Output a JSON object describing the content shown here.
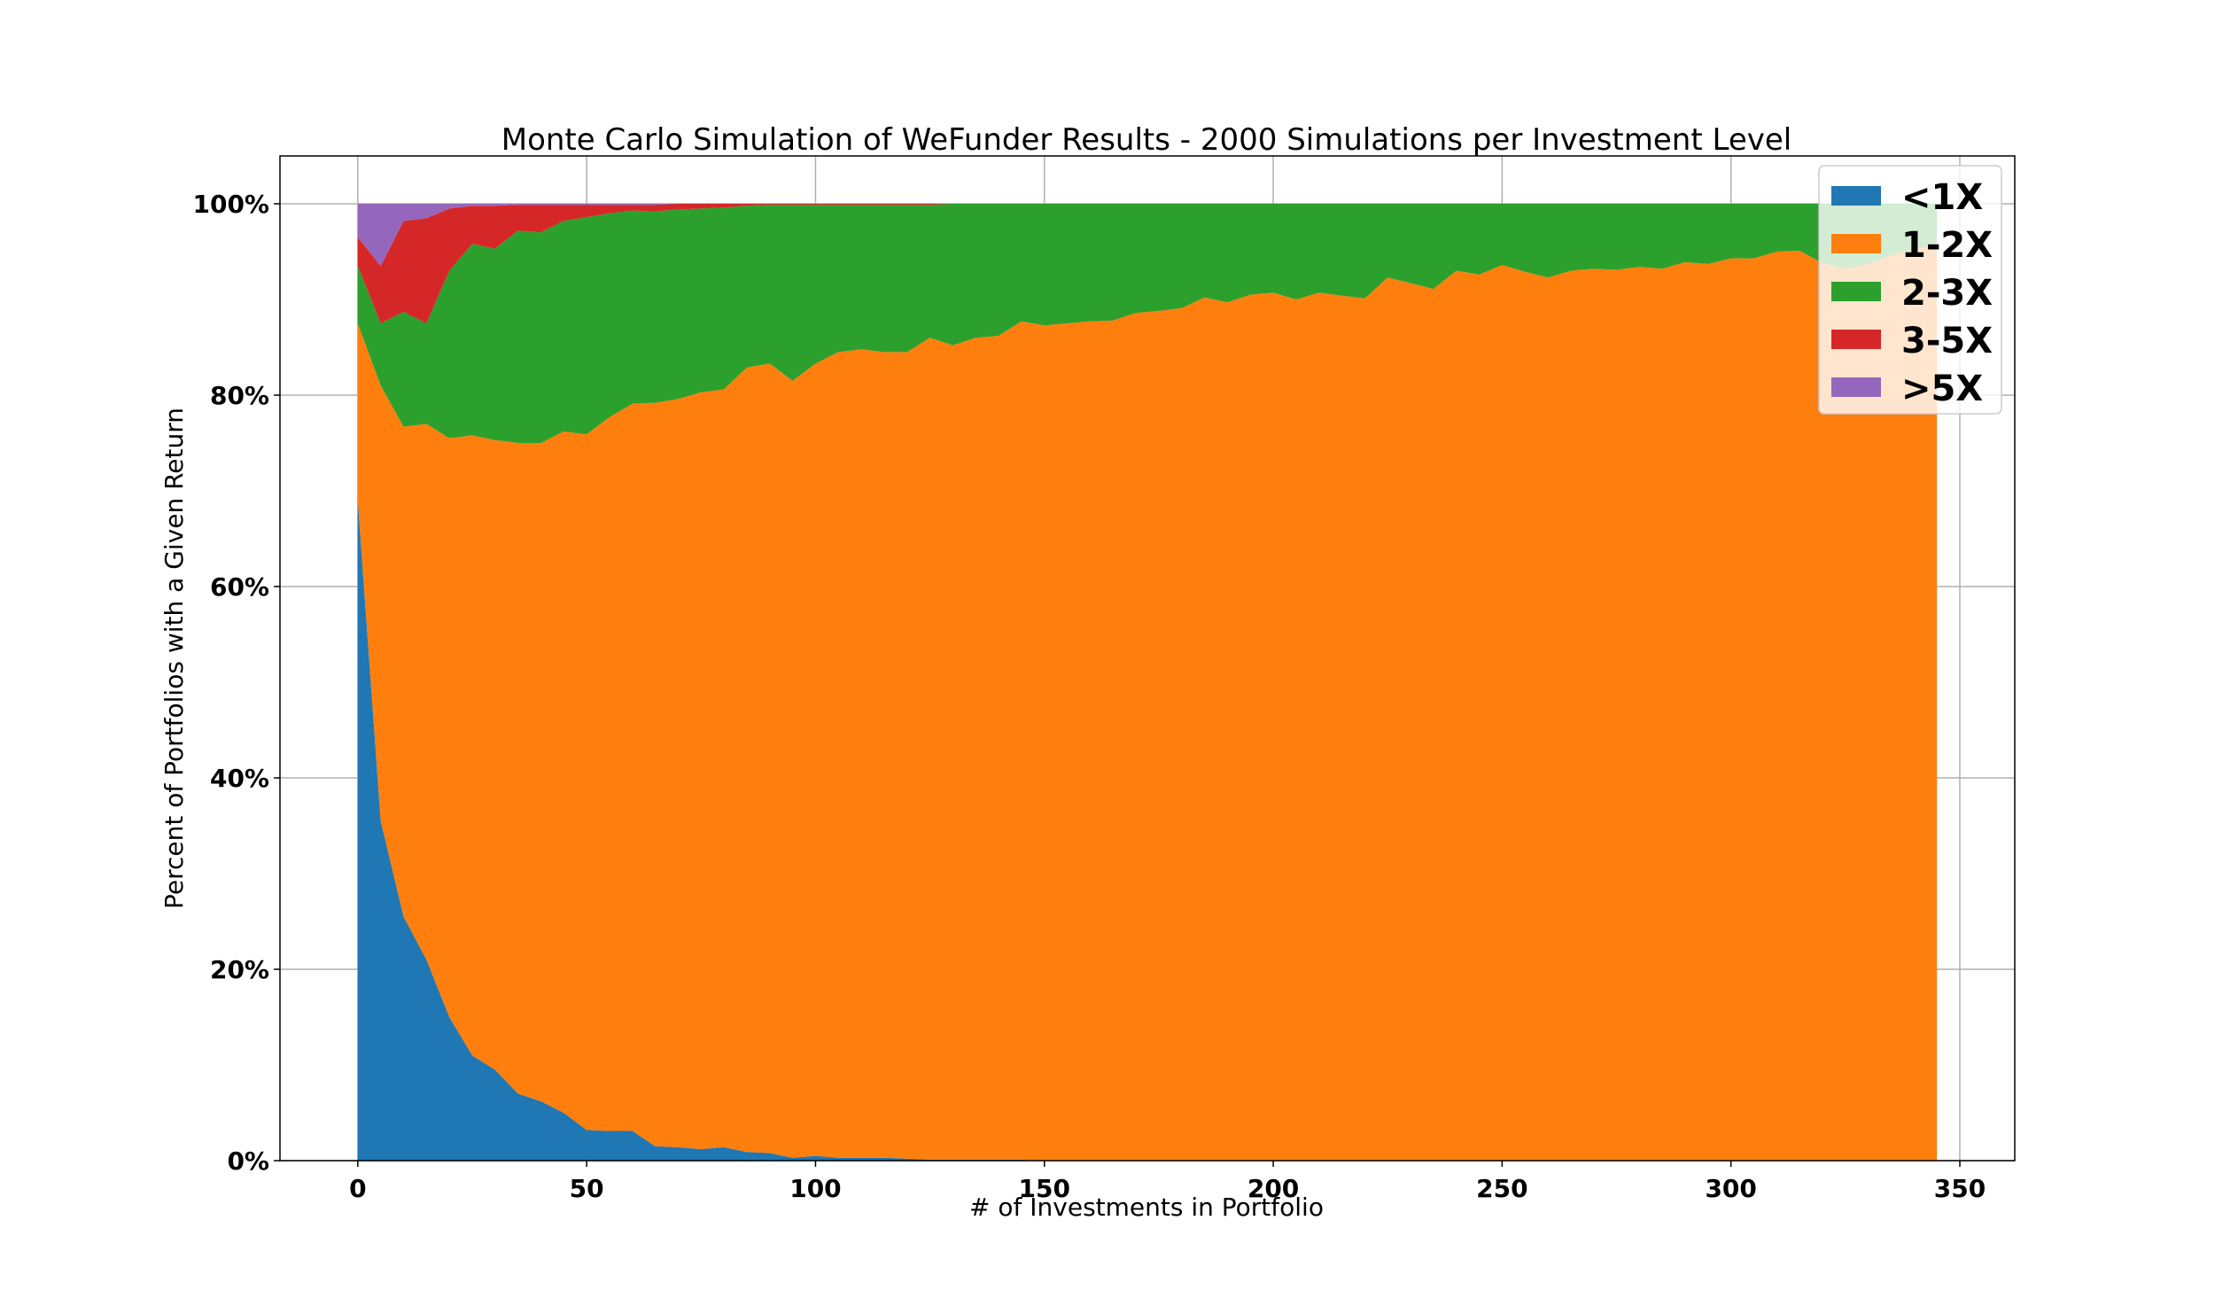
{
  "chart_data": {
    "type": "area",
    "title": "Monte Carlo Simulation of WeFunder Results - 2000 Simulations per Investment Level",
    "xlabel": "# of Investments in Portfolio",
    "ylabel": "Percent of Portfolios with a Given Return",
    "xlim": [
      -17,
      362
    ],
    "ylim": [
      0,
      1.05
    ],
    "x_ticks": [
      0,
      50,
      100,
      150,
      200,
      250,
      300,
      350
    ],
    "x_tick_labels": [
      "0",
      "50",
      "100",
      "150",
      "200",
      "250",
      "300",
      "350"
    ],
    "y_ticks": [
      0,
      0.2,
      0.4,
      0.6,
      0.8,
      1.0
    ],
    "y_tick_labels": [
      "0%",
      "20%",
      "40%",
      "60%",
      "80%",
      "100%"
    ],
    "grid": true,
    "legend_position": "top-right",
    "colors": {
      "<1X": "#1f77b4",
      "1-2X": "#ff7f0e",
      "2-3X": "#2ca02c",
      "3-5X": "#d62728",
      ">5X": "#9467bd"
    },
    "x": [
      0,
      5,
      10,
      15,
      20,
      25,
      30,
      35,
      40,
      45,
      50,
      55,
      60,
      65,
      70,
      75,
      80,
      85,
      90,
      95,
      100,
      105,
      110,
      115,
      120,
      125,
      130,
      135,
      140,
      145,
      150,
      155,
      160,
      165,
      170,
      175,
      180,
      185,
      190,
      195,
      200,
      205,
      210,
      215,
      220,
      225,
      230,
      235,
      240,
      245,
      250,
      255,
      260,
      265,
      270,
      275,
      280,
      285,
      290,
      295,
      300,
      305,
      310,
      315,
      320,
      325,
      330,
      335,
      340,
      345
    ],
    "series": [
      {
        "name": "<1X",
        "values": [
          0.69,
          0.355,
          0.255,
          0.21,
          0.15,
          0.11,
          0.095,
          0.07,
          0.062,
          0.05,
          0.032,
          0.031,
          0.031,
          0.015,
          0.014,
          0.012,
          0.014,
          0.009,
          0.008,
          0.003,
          0.005,
          0.003,
          0.003,
          0.003,
          0.002,
          0.001,
          0.001,
          0.001,
          0.001,
          0.001,
          0.0,
          0.0,
          0.0,
          0.0,
          0.0,
          0.0,
          0.0,
          0.0,
          0.0,
          0.0,
          0.0,
          0.0,
          0.0,
          0.0,
          0.0,
          0.0,
          0.0,
          0.0,
          0.0,
          0.0,
          0.0,
          0.0,
          0.0,
          0.0,
          0.0,
          0.0,
          0.0,
          0.0,
          0.0,
          0.0,
          0.0,
          0.0,
          0.0,
          0.0,
          0.0,
          0.0,
          0.0,
          0.0,
          0.0,
          0.0
        ]
      },
      {
        "name": "1-2X",
        "values": [
          0.185,
          0.455,
          0.512,
          0.56,
          0.605,
          0.648,
          0.658,
          0.68,
          0.688,
          0.712,
          0.727,
          0.746,
          0.76,
          0.777,
          0.782,
          0.791,
          0.792,
          0.82,
          0.825,
          0.812,
          0.828,
          0.842,
          0.845,
          0.842,
          0.843,
          0.859,
          0.851,
          0.859,
          0.861,
          0.876,
          0.873,
          0.875,
          0.877,
          0.878,
          0.886,
          0.888,
          0.891,
          0.902,
          0.897,
          0.905,
          0.907,
          0.9,
          0.907,
          0.904,
          0.901,
          0.923,
          0.917,
          0.911,
          0.93,
          0.926,
          0.936,
          0.929,
          0.923,
          0.93,
          0.932,
          0.931,
          0.934,
          0.932,
          0.939,
          0.937,
          0.943,
          0.943,
          0.95,
          0.951,
          0.938,
          0.932,
          0.937,
          0.946,
          0.952,
          0.958
        ]
      },
      {
        "name": "2-3X",
        "values": [
          0.06,
          0.065,
          0.12,
          0.105,
          0.175,
          0.2,
          0.2,
          0.222,
          0.22,
          0.22,
          0.227,
          0.213,
          0.202,
          0.2,
          0.198,
          0.192,
          0.19,
          0.169,
          0.166,
          0.184,
          0.166,
          0.154,
          0.151,
          0.154,
          0.154,
          0.139,
          0.148,
          0.14,
          0.138,
          0.123,
          0.127,
          0.125,
          0.123,
          0.122,
          0.114,
          0.112,
          0.109,
          0.098,
          0.103,
          0.095,
          0.093,
          0.1,
          0.093,
          0.096,
          0.099,
          0.077,
          0.083,
          0.089,
          0.07,
          0.074,
          0.064,
          0.071,
          0.077,
          0.07,
          0.068,
          0.069,
          0.066,
          0.068,
          0.061,
          0.063,
          0.057,
          0.057,
          0.05,
          0.049,
          0.062,
          0.068,
          0.063,
          0.054,
          0.048,
          0.042
        ]
      },
      {
        "name": "3-5X",
        "values": [
          0.03,
          0.06,
          0.095,
          0.11,
          0.065,
          0.04,
          0.045,
          0.027,
          0.029,
          0.017,
          0.013,
          0.009,
          0.006,
          0.007,
          0.006,
          0.005,
          0.004,
          0.002,
          0.001,
          0.001,
          0.001,
          0.001,
          0.001,
          0.001,
          0.001,
          0.001,
          0.0,
          0.0,
          0.0,
          0.0,
          0.0,
          0.0,
          0.0,
          0.0,
          0.0,
          0.0,
          0.0,
          0.0,
          0.0,
          0.0,
          0.0,
          0.0,
          0.0,
          0.0,
          0.0,
          0.0,
          0.0,
          0.0,
          0.0,
          0.0,
          0.0,
          0.0,
          0.0,
          0.0,
          0.0,
          0.0,
          0.0,
          0.0,
          0.0,
          0.0,
          0.0,
          0.0,
          0.0,
          0.0,
          0.0,
          0.0,
          0.0,
          0.0,
          0.0,
          0.0
        ]
      },
      {
        "name": ">5X",
        "values": [
          0.035,
          0.065,
          0.018,
          0.015,
          0.005,
          0.002,
          0.002,
          0.001,
          0.001,
          0.001,
          0.001,
          0.001,
          0.001,
          0.001,
          0.0,
          0.0,
          0.0,
          0.0,
          0.0,
          0.0,
          0.0,
          0.0,
          0.0,
          0.0,
          0.0,
          0.0,
          0.0,
          0.0,
          0.0,
          0.0,
          0.0,
          0.0,
          0.0,
          0.0,
          0.0,
          0.0,
          0.0,
          0.0,
          0.0,
          0.0,
          0.0,
          0.0,
          0.0,
          0.0,
          0.0,
          0.0,
          0.0,
          0.0,
          0.0,
          0.0,
          0.0,
          0.0,
          0.0,
          0.0,
          0.0,
          0.0,
          0.0,
          0.0,
          0.0,
          0.0,
          0.0,
          0.0,
          0.0,
          0.0,
          0.0,
          0.0,
          0.0,
          0.0,
          0.0,
          0.0
        ]
      }
    ]
  }
}
